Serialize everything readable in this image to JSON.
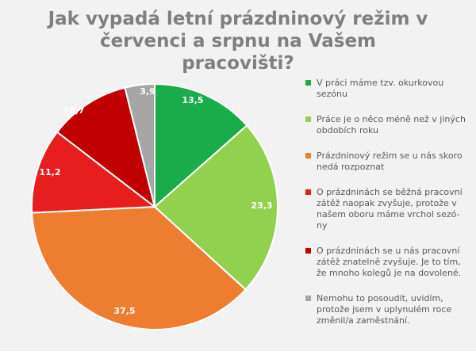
{
  "title": "Jak vypadá letní prázdninový režim v červenci a srpnu na Vašem pracovišti?",
  "chart_data": {
    "type": "pie",
    "title": "Jak vypadá letní prázdninový režim v červenci a srpnu na Vašem pracovišti?",
    "series": [
      {
        "categories": [
          "V práci máme tzv. okurkovou sezónu",
          "Práce je o něco méně než v jiných obdobích roku",
          "Prázdninový režim se u nás skoro nedá rozpoznat",
          "O prázdninách se běžná pracovní zátěž naopak zvyšuje, protože v našem oboru máme vrchol sezóny",
          "O prázdninách se u nás pracovní zátěž znatelně zvyšuje. Je to tím, že mnoho kolegů je na dovolené.",
          "Nemohu to posoudit, uvidím, protože jsem v uplynulém roce změnil/a zaměstnání."
        ],
        "values": [
          13.5,
          23.3,
          37.5,
          11.2,
          10.7,
          3.9
        ],
        "labels": [
          "13,5",
          "23,3",
          "37,5",
          "11,2",
          "10,7",
          "3,9"
        ],
        "colors": [
          "#1aab4b",
          "#92d050",
          "#ed7d31",
          "#e61e1e",
          "#c00000",
          "#a6a6a6"
        ]
      }
    ],
    "legend_position": "right",
    "start_angle": "12 o'clock",
    "direction": "clockwise"
  },
  "legend_items": [
    {
      "lines": [
        "V práci máme tzv. okurkovou",
        "sezónu"
      ]
    },
    {
      "lines": [
        "Práce je o něco méně než v jiných",
        "obdobích roku"
      ]
    },
    {
      "lines": [
        "Prázdninový režim se u nás skoro",
        "nedá rozpoznat"
      ]
    },
    {
      "lines": [
        "O prázdninách se běžná pracovní",
        "zátěž naopak zvyšuje, protože v",
        "našem oboru máme vrchol sezó-",
        "ny"
      ]
    },
    {
      "lines": [
        "O prázdninách se u nás pracovní",
        "zátěž znatelně zvyšuje. Je to tím,",
        "že mnoho kolegů je na dovolené."
      ]
    },
    {
      "lines": [
        "Nemohu to posoudit, uvidím,",
        "protože jsem v uplynulém roce",
        "změnil/a zaměstnání."
      ]
    }
  ]
}
